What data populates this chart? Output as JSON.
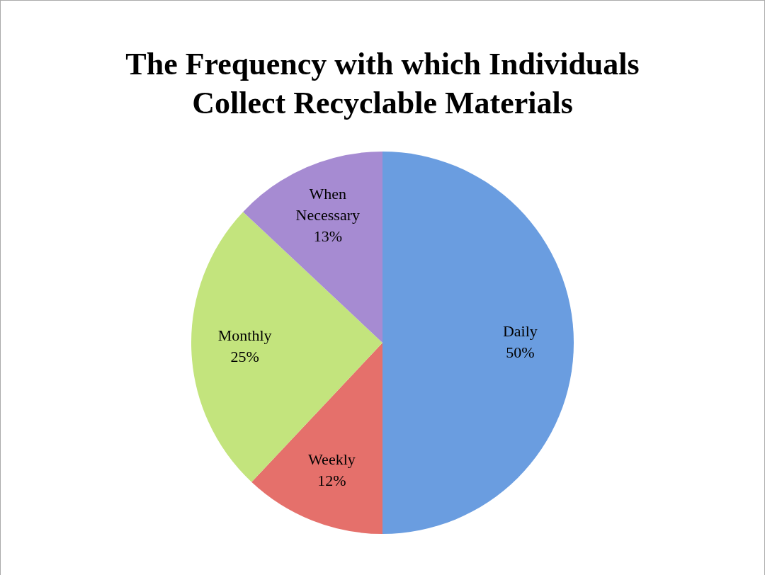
{
  "chart_data": {
    "type": "pie",
    "title": "The Frequency with which Individuals Collect Recyclable Materials",
    "categories": [
      "Daily",
      "Weekly",
      "Monthly",
      "When Necessary"
    ],
    "values": [
      50,
      12,
      25,
      13
    ],
    "value_labels": [
      "50%",
      "12%",
      "25%",
      "13%"
    ],
    "colors": [
      "#6a9de0",
      "#e5706b",
      "#c3e47d",
      "#a68bd2"
    ],
    "legend": false
  }
}
